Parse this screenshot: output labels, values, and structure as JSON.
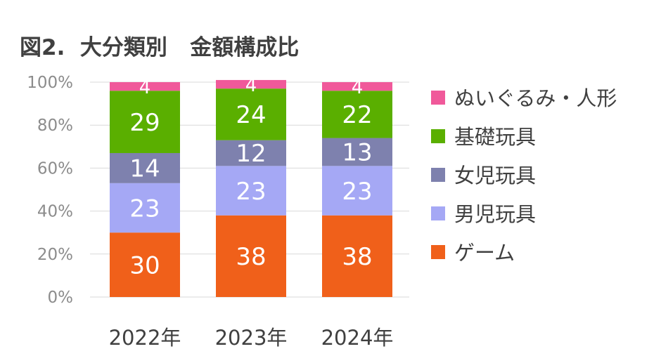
{
  "chart_data": {
    "type": "bar",
    "stacked": true,
    "title": "図2.  大分類別   金額構成比",
    "categories": [
      "2022年",
      "2023年",
      "2024年"
    ],
    "y_ticks": [
      "0%",
      "20%",
      "40%",
      "60%",
      "80%",
      "100%"
    ],
    "ylim": [
      0,
      100
    ],
    "grid": true,
    "legend_position": "right",
    "series": [
      {
        "name": "ゲーム",
        "values": [
          30,
          38,
          38
        ],
        "color": "#f0601a"
      },
      {
        "name": "男児玩具",
        "values": [
          23,
          23,
          23
        ],
        "color": "#a5a8f5"
      },
      {
        "name": "女児玩具",
        "values": [
          14,
          12,
          13
        ],
        "color": "#7e81ae"
      },
      {
        "name": "基礎玩具",
        "values": [
          29,
          24,
          22
        ],
        "color": "#5aaf00"
      },
      {
        "name": "ぬいぐるみ・人形",
        "values": [
          4,
          4,
          4
        ],
        "color": "#f0599a"
      }
    ],
    "legend_order": [
      "ぬいぐるみ・人形",
      "基礎玩具",
      "女児玩具",
      "男児玩具",
      "ゲーム"
    ]
  }
}
